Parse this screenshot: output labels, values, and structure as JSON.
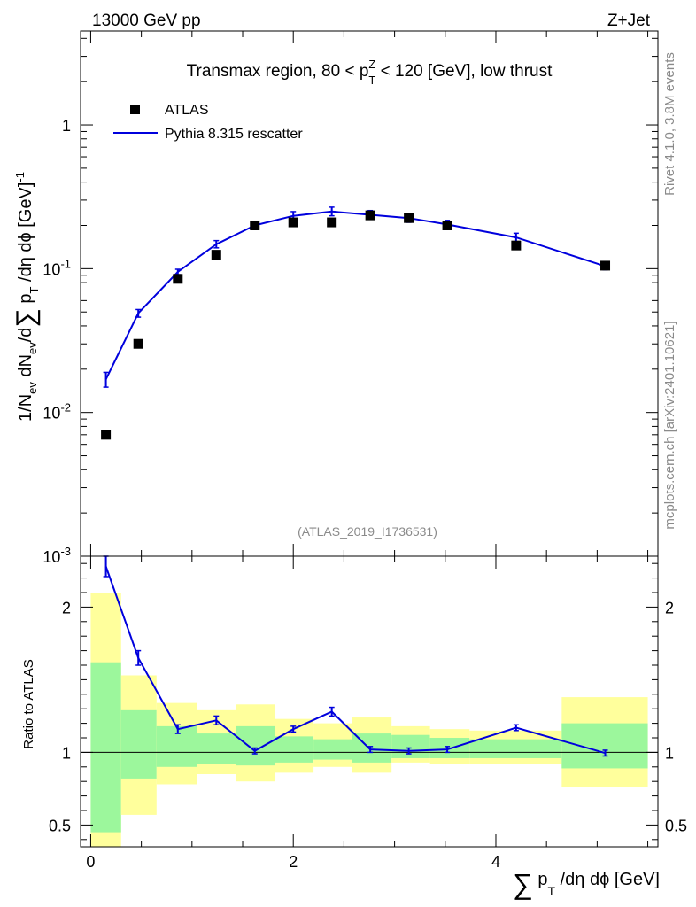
{
  "header": {
    "left": "13000 GeV pp",
    "right": "Z+Jet"
  },
  "side_labels": {
    "rivet": "Rivet 4.1.0,  3.8M events",
    "mcplots": "mcplots.cern.ch [arXiv:2401.10621]"
  },
  "colors": {
    "mc_line": "#0000dd",
    "data_marker": "#000000",
    "band_inner": "#9cf79c",
    "band_outer": "#ffff9c",
    "watermark": "#8a8a8a"
  },
  "chart_data": [
    {
      "type": "scatter",
      "title": "Transmax region, 80 < p_T^Z < 120 [GeV], low thrust",
      "ylabel": "1/N_ev dN_ev/d∑p_T/dη dϕ  [GeV]^-1",
      "xlabel": "∑p_T/dη dϕ [GeV]",
      "watermark": "(ATLAS_2019_I1736531)",
      "yscale": "log",
      "ylim": [
        0.001,
        4.5
      ],
      "xlim": [
        -0.1,
        5.6
      ],
      "y_ticks": [
        {
          "value": 0.001,
          "label": "10^-3"
        },
        {
          "value": 0.01,
          "label": "10^-2"
        },
        {
          "value": 0.1,
          "label": "10^-1"
        },
        {
          "value": 1,
          "label": "1"
        }
      ],
      "legend": {
        "position": "top-left",
        "entries": [
          "ATLAS",
          "Pythia 8.315 rescatter"
        ]
      },
      "series": [
        {
          "name": "ATLAS",
          "style": "marker",
          "x": [
            0.15,
            0.47,
            0.86,
            1.24,
            1.62,
            2.0,
            2.38,
            2.76,
            3.14,
            3.52,
            4.2,
            5.08
          ],
          "y": [
            0.007,
            0.03,
            0.085,
            0.125,
            0.2,
            0.21,
            0.21,
            0.235,
            0.225,
            0.2,
            0.145,
            0.105
          ],
          "x_bins": [
            [
              0.0,
              0.3
            ],
            [
              0.3,
              0.65
            ],
            [
              0.65,
              1.05
            ],
            [
              1.05,
              1.43
            ],
            [
              1.43,
              1.82
            ],
            [
              1.82,
              2.2
            ],
            [
              2.2,
              2.58
            ],
            [
              2.58,
              2.97
            ],
            [
              2.97,
              3.35
            ],
            [
              3.35,
              3.74
            ],
            [
              3.74,
              4.65
            ],
            [
              4.65,
              5.5
            ]
          ]
        },
        {
          "name": "Pythia 8.315 rescatter",
          "style": "line",
          "x": [
            0.15,
            0.47,
            0.86,
            1.24,
            1.62,
            2.0,
            2.38,
            2.76,
            3.14,
            3.52,
            4.2,
            5.08
          ],
          "y": [
            0.017,
            0.049,
            0.095,
            0.148,
            0.2,
            0.233,
            0.25,
            0.237,
            0.225,
            0.203,
            0.165,
            0.104
          ],
          "yerr": [
            0.002,
            0.003,
            0.004,
            0.004,
            0.004,
            0.004,
            0.004,
            0.004,
            0.004,
            0.004,
            0.003,
            0.003
          ]
        }
      ]
    },
    {
      "type": "line",
      "ylabel": "Ratio to ATLAS",
      "ylim": [
        0.35,
        2.35
      ],
      "xlim": [
        -0.1,
        5.6
      ],
      "y_ticks": [
        0.5,
        1,
        2
      ],
      "y_tick_labels": [
        "0.5",
        "1",
        "2"
      ],
      "x_ticks": [
        0,
        2,
        4
      ],
      "x_tick_labels": [
        "0",
        "2",
        "4"
      ],
      "reference": 1,
      "bands": {
        "x_bins": [
          [
            0.0,
            0.3
          ],
          [
            0.3,
            0.65
          ],
          [
            0.65,
            1.05
          ],
          [
            1.05,
            1.43
          ],
          [
            1.43,
            1.82
          ],
          [
            1.82,
            2.2
          ],
          [
            2.2,
            2.58
          ],
          [
            2.58,
            2.97
          ],
          [
            2.97,
            3.35
          ],
          [
            3.35,
            3.74
          ],
          [
            3.74,
            4.65
          ],
          [
            4.65,
            5.5
          ]
        ],
        "inner": [
          [
            0.45,
            1.62
          ],
          [
            0.82,
            1.29
          ],
          [
            0.9,
            1.18
          ],
          [
            0.92,
            1.13
          ],
          [
            0.91,
            1.18
          ],
          [
            0.93,
            1.11
          ],
          [
            0.95,
            1.09
          ],
          [
            0.93,
            1.13
          ],
          [
            0.96,
            1.12
          ],
          [
            0.96,
            1.1
          ],
          [
            0.96,
            1.09
          ],
          [
            0.89,
            1.2
          ]
        ],
        "outer": [
          [
            0.35,
            2.1
          ],
          [
            0.57,
            1.53
          ],
          [
            0.78,
            1.34
          ],
          [
            0.85,
            1.29
          ],
          [
            0.8,
            1.33
          ],
          [
            0.86,
            1.23
          ],
          [
            0.9,
            1.2
          ],
          [
            0.86,
            1.24
          ],
          [
            0.93,
            1.18
          ],
          [
            0.92,
            1.16
          ],
          [
            0.92,
            1.15
          ],
          [
            0.76,
            1.38
          ]
        ]
      },
      "series": [
        {
          "name": "Pythia 8.315 rescatter",
          "x": [
            0.15,
            0.47,
            0.86,
            1.24,
            1.62,
            2.0,
            2.38,
            2.76,
            3.14,
            3.52,
            4.2,
            5.08
          ],
          "y": [
            2.28,
            1.65,
            1.16,
            1.22,
            1.01,
            1.16,
            1.28,
            1.02,
            1.01,
            1.02,
            1.17,
            0.995
          ],
          "yerr": [
            0.07,
            0.05,
            0.03,
            0.03,
            0.02,
            0.02,
            0.03,
            0.02,
            0.02,
            0.02,
            0.02,
            0.02
          ]
        }
      ]
    }
  ]
}
